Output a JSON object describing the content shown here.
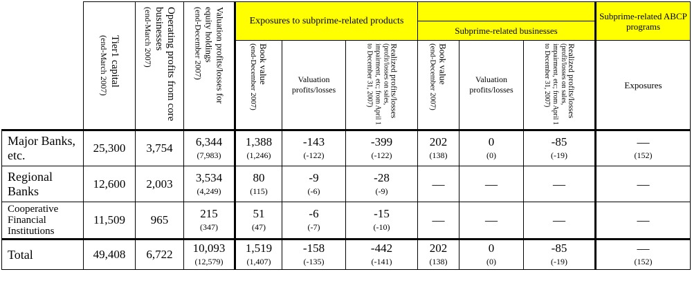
{
  "headers": {
    "tier1": "Tier1 capital",
    "tier1_sub": "(end-March 2007)",
    "op": "Operating profits from core businesses",
    "op_sub": "(end-March 2007)",
    "val_eq": "Valuation profits/losses for equity holdings",
    "val_eq_sub": "(end-December 2007)",
    "exposures_products": "Exposures to subprime-related products",
    "businesses": "Subprime-related businesses",
    "abcp": "Subprime-related ABCP programs",
    "book_value": "Book value",
    "book_value_sub": "(end-December 2007)",
    "valuation_pl": "Valuation profits/losses",
    "realized_pl": "Realized profits/losses",
    "realized_pl_sub": "(profit/losses on sales, impairment, etc; from April 1 to December 31, 2007)",
    "exposures": "Exposures"
  },
  "rows": [
    {
      "label": "Major Banks, etc.",
      "tier1": "25,300",
      "op": "3,754",
      "eq": "6,344",
      "eq_p": "(7,983)",
      "bv": "1,388",
      "bv_p": "(1,246)",
      "vpl": "-143",
      "vpl_p": "(-122)",
      "rpl": "-399",
      "rpl_p": "(-122)",
      "bbv": "202",
      "bbv_p": "(138)",
      "bvpl": "0",
      "bvpl_p": "(0)",
      "brpl": "-85",
      "brpl_p": "(-19)",
      "abcp": "—",
      "abcp_p": "(152)"
    },
    {
      "label": "Regional Banks",
      "tier1": "12,600",
      "op": "2,003",
      "eq": "3,534",
      "eq_p": "(4,249)",
      "bv": "80",
      "bv_p": "(115)",
      "vpl": "-9",
      "vpl_p": "(-6)",
      "rpl": "-28",
      "rpl_p": "(-9)",
      "bbv": "—",
      "bvpl": "—",
      "brpl": "—",
      "abcp": "—"
    },
    {
      "label": "Cooperative Financial Institutions",
      "tier1": "11,509",
      "op": "965",
      "eq": "215",
      "eq_p": "(347)",
      "bv": "51",
      "bv_p": "(47)",
      "vpl": "-6",
      "vpl_p": "(-7)",
      "rpl": "-15",
      "rpl_p": "(-10)",
      "bbv": "—",
      "bvpl": "—",
      "brpl": "—",
      "abcp": "—"
    },
    {
      "label": "Total",
      "tier1": "49,408",
      "op": "6,722",
      "eq": "10,093",
      "eq_p": "(12,579)",
      "bv": "1,519",
      "bv_p": "(1,407)",
      "vpl": "-158",
      "vpl_p": "(-135)",
      "rpl": "-442",
      "rpl_p": "(-141)",
      "bbv": "202",
      "bbv_p": "(138)",
      "bvpl": "0",
      "bvpl_p": "(0)",
      "brpl": "-85",
      "brpl_p": "(-19)",
      "abcp": "—",
      "abcp_p": "(152)"
    }
  ]
}
